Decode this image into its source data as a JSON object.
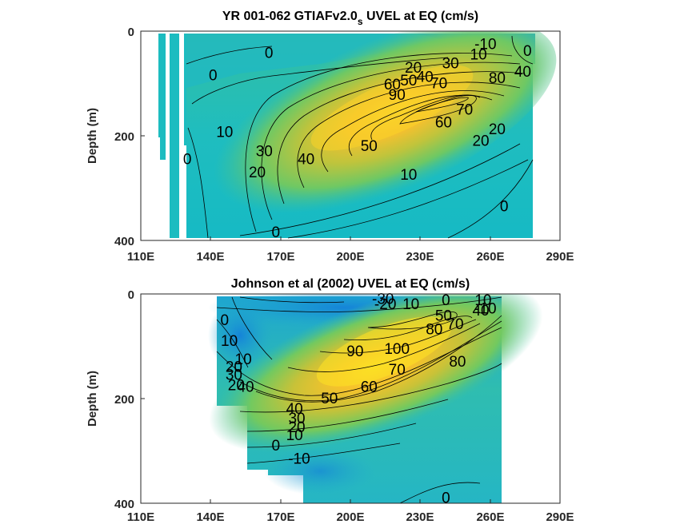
{
  "chart_data": [
    {
      "type": "heatmap",
      "title_main": "YR 001-062 GTIAFv2.0",
      "title_sub": "s",
      "title_rest": " UVEL at EQ (cm/s)",
      "ylabel": "Depth (m)",
      "xticks": [
        "110E",
        "140E",
        "170E",
        "200E",
        "230E",
        "260E",
        "290E"
      ],
      "yticks": [
        "0",
        "200",
        "400"
      ],
      "xlim": [
        110,
        290
      ],
      "ylim": [
        0,
        400
      ],
      "colormap": [
        "#0d8fd8",
        "#17b4c6",
        "#3dbf9a",
        "#82ca5c",
        "#cdbc38",
        "#f5c62c",
        "#f9e022"
      ],
      "core": {
        "lon": 225,
        "depth": 125,
        "max_speed": 95
      },
      "contour_labels": [
        {
          "text": "-10",
          "lon": 258,
          "depth": 25
        },
        {
          "text": "0",
          "lon": 276,
          "depth": 38
        },
        {
          "text": "10",
          "lon": 255,
          "depth": 45
        },
        {
          "text": "0",
          "lon": 165,
          "depth": 42
        },
        {
          "text": "0",
          "lon": 141,
          "depth": 85
        },
        {
          "text": "20",
          "lon": 227,
          "depth": 70
        },
        {
          "text": "30",
          "lon": 243,
          "depth": 62
        },
        {
          "text": "40",
          "lon": 232,
          "depth": 88
        },
        {
          "text": "50",
          "lon": 225,
          "depth": 95
        },
        {
          "text": "60",
          "lon": 218,
          "depth": 102
        },
        {
          "text": "70",
          "lon": 238,
          "depth": 100
        },
        {
          "text": "80",
          "lon": 263,
          "depth": 90
        },
        {
          "text": "90",
          "lon": 220,
          "depth": 122
        },
        {
          "text": "40",
          "lon": 274,
          "depth": 78
        },
        {
          "text": "10",
          "lon": 146,
          "depth": 193
        },
        {
          "text": "30",
          "lon": 163,
          "depth": 230
        },
        {
          "text": "20",
          "lon": 160,
          "depth": 270
        },
        {
          "text": "0",
          "lon": 130,
          "depth": 245
        },
        {
          "text": "40",
          "lon": 181,
          "depth": 245
        },
        {
          "text": "50",
          "lon": 208,
          "depth": 220
        },
        {
          "text": "60",
          "lon": 240,
          "depth": 175
        },
        {
          "text": "70",
          "lon": 249,
          "depth": 150
        },
        {
          "text": "20",
          "lon": 256,
          "depth": 210
        },
        {
          "text": "20",
          "lon": 263,
          "depth": 188
        },
        {
          "text": "10",
          "lon": 225,
          "depth": 275
        },
        {
          "text": "0",
          "lon": 266,
          "depth": 335
        },
        {
          "text": "0",
          "lon": 168,
          "depth": 385
        }
      ]
    },
    {
      "type": "heatmap",
      "title_main": "Johnson et al (2002) UVEL at EQ (cm/s)",
      "ylabel": "Depth (m)",
      "xticks": [
        "110E",
        "140E",
        "170E",
        "200E",
        "230E",
        "260E",
        "290E"
      ],
      "yticks": [
        "0",
        "200",
        "400"
      ],
      "xlim": [
        110,
        290
      ],
      "ylim": [
        0,
        400
      ],
      "colormap": [
        "#0d8fd8",
        "#17b4c6",
        "#3dbf9a",
        "#82ca5c",
        "#cdbc38",
        "#f5c62c",
        "#f9e022"
      ],
      "core": {
        "lon": 225,
        "depth": 120,
        "max_speed": 100
      },
      "contour_labels": [
        {
          "text": "-30",
          "lon": 214,
          "depth": 10
        },
        {
          "text": "-20",
          "lon": 215,
          "depth": 20
        },
        {
          "text": "10",
          "lon": 226,
          "depth": 20
        },
        {
          "text": "0",
          "lon": 241,
          "depth": 12
        },
        {
          "text": "10",
          "lon": 257,
          "depth": 12
        },
        {
          "text": "-10",
          "lon": 258,
          "depth": 28
        },
        {
          "text": "50",
          "lon": 240,
          "depth": 42
        },
        {
          "text": "40",
          "lon": 256,
          "depth": 32
        },
        {
          "text": "70",
          "lon": 245,
          "depth": 58
        },
        {
          "text": "80",
          "lon": 236,
          "depth": 68
        },
        {
          "text": "0",
          "lon": 146,
          "depth": 50
        },
        {
          "text": "10",
          "lon": 148,
          "depth": 90
        },
        {
          "text": "10",
          "lon": 154,
          "depth": 125
        },
        {
          "text": "20",
          "lon": 150,
          "depth": 140
        },
        {
          "text": "30",
          "lon": 150,
          "depth": 155
        },
        {
          "text": "20",
          "lon": 151,
          "depth": 175
        },
        {
          "text": "40",
          "lon": 155,
          "depth": 178
        },
        {
          "text": "90",
          "lon": 202,
          "depth": 110
        },
        {
          "text": "100",
          "lon": 220,
          "depth": 105
        },
        {
          "text": "70",
          "lon": 220,
          "depth": 145
        },
        {
          "text": "80",
          "lon": 246,
          "depth": 130
        },
        {
          "text": "60",
          "lon": 208,
          "depth": 178
        },
        {
          "text": "50",
          "lon": 191,
          "depth": 200
        },
        {
          "text": "40",
          "lon": 176,
          "depth": 220
        },
        {
          "text": "30",
          "lon": 177,
          "depth": 238
        },
        {
          "text": "20",
          "lon": 177,
          "depth": 255
        },
        {
          "text": "10",
          "lon": 176,
          "depth": 270
        },
        {
          "text": "0",
          "lon": 168,
          "depth": 290
        },
        {
          "text": "-10",
          "lon": 178,
          "depth": 315
        },
        {
          "text": "0",
          "lon": 241,
          "depth": 390
        }
      ]
    }
  ]
}
